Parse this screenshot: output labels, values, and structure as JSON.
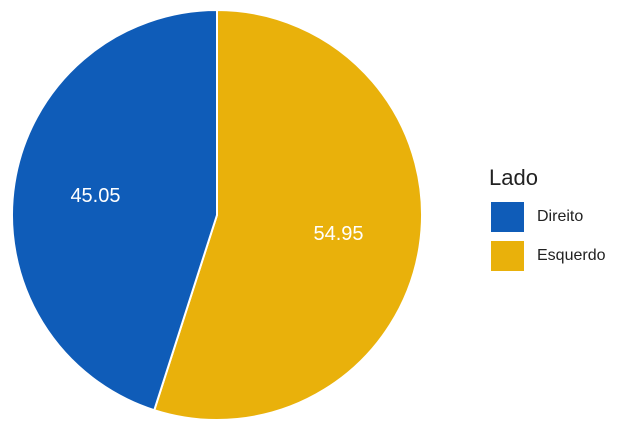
{
  "chart_data": {
    "type": "pie",
    "legend_title": "Lado",
    "legend_position": "right",
    "slices": [
      {
        "label": "Direito",
        "value": 45.05,
        "value_label": "45.05",
        "color": "#0f5cb8"
      },
      {
        "label": "Esquerdo",
        "value": 54.95,
        "value_label": "54.95",
        "color": "#e9b10b"
      }
    ]
  }
}
